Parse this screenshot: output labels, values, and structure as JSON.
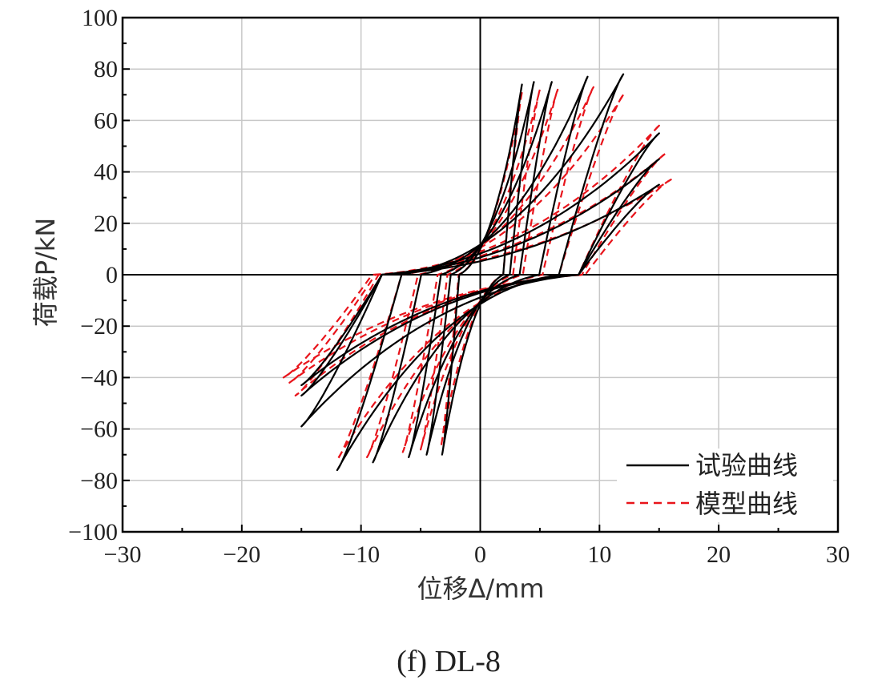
{
  "caption": "(f) DL-8",
  "chart_data": {
    "type": "line",
    "xlabel": "位移Δ/mm",
    "ylabel": "荷载P/kN",
    "xlim": [
      -30,
      30
    ],
    "ylim": [
      -100,
      100
    ],
    "xticks": [
      -30,
      -20,
      -10,
      0,
      10,
      20,
      30
    ],
    "yticks": [
      -100,
      -80,
      -60,
      -40,
      -20,
      0,
      20,
      40,
      60,
      80,
      100
    ],
    "xtick_labels": [
      "−30",
      "−20",
      "−10",
      "0",
      "10",
      "20",
      "30"
    ],
    "ytick_labels": [
      "−100",
      "−80",
      "−60",
      "−40",
      "−20",
      "0",
      "20",
      "40",
      "60",
      "80",
      "100"
    ],
    "grid": true,
    "legend": "bottom-right",
    "colors": {
      "experiment": "#000000",
      "model": "#e8141b",
      "grid": "#c8c8c8"
    },
    "series": [
      {
        "name": "试验曲线",
        "style": "solid",
        "color": "#000000",
        "loops": [
          {
            "dmax": 3.5,
            "pmax": 74,
            "dmin": -3.2,
            "pmin": -70
          },
          {
            "dmax": 4.5,
            "pmax": 75,
            "dmin": -4.5,
            "pmin": -70
          },
          {
            "dmax": 6,
            "pmax": 75,
            "dmin": -6,
            "pmin": -71
          },
          {
            "dmax": 9,
            "pmax": 77,
            "dmin": -9,
            "pmin": -73
          },
          {
            "dmax": 12,
            "pmax": 78,
            "dmin": -12,
            "pmin": -76
          },
          {
            "dmax": 15,
            "pmax": 55,
            "dmin": -15,
            "pmin": -59
          },
          {
            "dmax": 15,
            "pmax": 45,
            "dmin": -15,
            "pmin": -47
          },
          {
            "dmax": 15,
            "pmax": 35,
            "dmin": -15,
            "pmin": -43
          }
        ]
      },
      {
        "name": "模型曲线",
        "style": "dashed",
        "color": "#e8141b",
        "loops": [
          {
            "dmax": 3.5,
            "pmax": 71,
            "dmin": -3.3,
            "pmin": -67
          },
          {
            "dmax": 5,
            "pmax": 72,
            "dmin": -5,
            "pmin": -68
          },
          {
            "dmax": 6.5,
            "pmax": 72,
            "dmin": -6.5,
            "pmin": -69
          },
          {
            "dmax": 9.5,
            "pmax": 73,
            "dmin": -9.5,
            "pmin": -71
          },
          {
            "dmax": 12,
            "pmax": 70,
            "dmin": -12,
            "pmin": -72
          },
          {
            "dmax": 15,
            "pmax": 58,
            "dmin": -15.5,
            "pmin": -47
          },
          {
            "dmax": 15.5,
            "pmax": 47,
            "dmin": -16,
            "pmin": -42
          },
          {
            "dmax": 16,
            "pmax": 37,
            "dmin": -16.5,
            "pmin": -40
          }
        ]
      }
    ]
  }
}
